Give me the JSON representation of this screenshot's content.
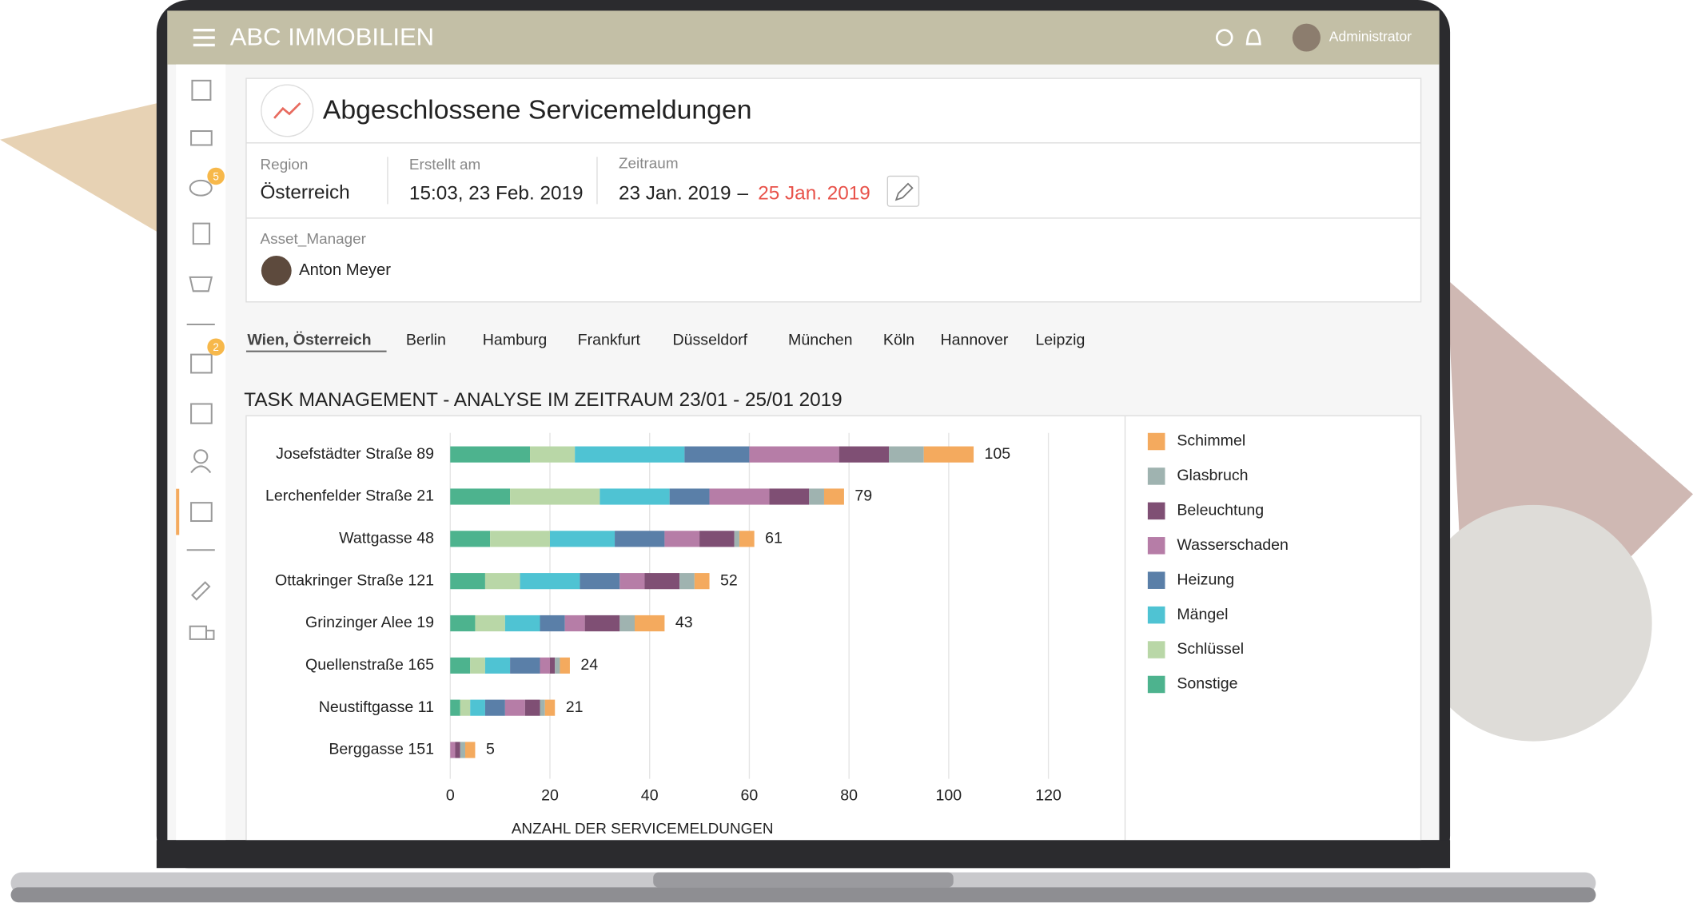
{
  "header": {
    "app_title": "ABC IMMOBILIEN",
    "user": "Administrator"
  },
  "sidebar": {
    "badges": [
      "5",
      "2"
    ]
  },
  "report": {
    "title": "Abgeschlossene Servicemeldungen",
    "region_label": "Region",
    "region": "Österreich",
    "created_label": "Erstellt am",
    "created": "15:03, 23 Feb. 2019",
    "period_label": "Zeitraum",
    "period_start": "23 Jan. 2019",
    "period_separator": "–",
    "period_end": "25 Jan. 2019",
    "manager_label": "Asset_Manager",
    "manager": "Anton Meyer"
  },
  "tabs": [
    "Wien, Österreich",
    "Berlin",
    "Hamburg",
    "Frankfurt",
    "Düsseldorf",
    "München",
    "Köln",
    "Hannover",
    "Leipzig"
  ],
  "chart_data": {
    "type": "stacked-hbar",
    "title": "TASK MANAGEMENT - ANALYSE IM ZEITRAUM 23/01 - 25/01 2019",
    "xlabel": "ANZAHL DER SERVICEMELDUNGEN",
    "categories": [
      "Josefstädter Straße 89",
      "Lerchenfelder Straße 21",
      "Wattgasse 48",
      "Ottakringer Straße 121",
      "Grinzinger Alee 19",
      "Quellenstraße 165",
      "Neustiftgasse 11",
      "Berggasse 151"
    ],
    "series": [
      {
        "name": "Sonstige",
        "color": "#4db38e",
        "values": [
          16,
          12,
          8,
          7,
          5,
          4,
          2,
          0
        ]
      },
      {
        "name": "Schlüssel",
        "color": "#b9d7a7",
        "values": [
          9,
          18,
          12,
          7,
          6,
          3,
          2,
          0
        ]
      },
      {
        "name": "Mängel",
        "color": "#4fc3d3",
        "values": [
          22,
          14,
          13,
          12,
          7,
          5,
          3,
          0
        ]
      },
      {
        "name": "Heizung",
        "color": "#5a7fa8",
        "values": [
          13,
          8,
          10,
          8,
          5,
          6,
          4,
          0
        ]
      },
      {
        "name": "Wasserschaden",
        "color": "#b67da7",
        "values": [
          18,
          12,
          7,
          5,
          4,
          2,
          4,
          1
        ]
      },
      {
        "name": "Beleuchtung",
        "color": "#7f4f74",
        "values": [
          10,
          8,
          7,
          7,
          7,
          1,
          3,
          1
        ]
      },
      {
        "name": "Glasbruch",
        "color": "#9fb3b0",
        "values": [
          7,
          3,
          1,
          3,
          3,
          1,
          1,
          1
        ]
      },
      {
        "name": "Schimmel",
        "color": "#f4aa5e",
        "values": [
          10,
          4,
          3,
          3,
          6,
          2,
          2,
          2
        ]
      }
    ],
    "totals": [
      105,
      79,
      61,
      52,
      43,
      24,
      21,
      5
    ],
    "xlim": [
      0,
      120
    ],
    "xticks": [
      0,
      20,
      40,
      60,
      80,
      100,
      120
    ],
    "grid": true
  }
}
